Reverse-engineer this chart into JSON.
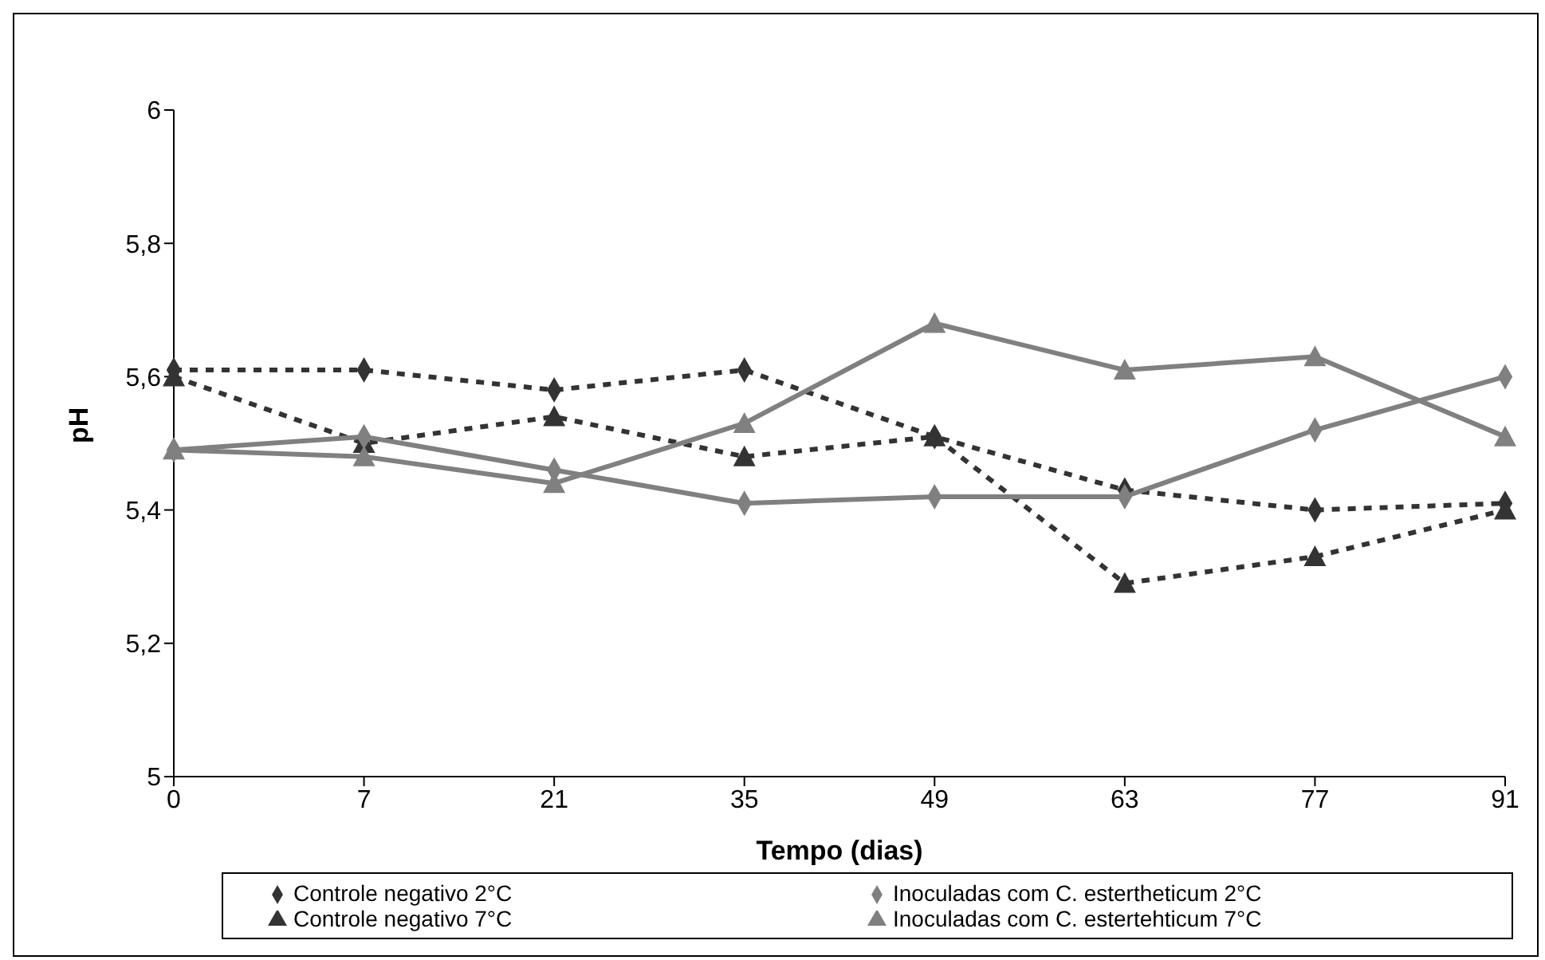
{
  "chart_data": {
    "type": "line",
    "xlabel": "Tempo (dias)",
    "ylabel": "pH",
    "categories": [
      "0",
      "7",
      "21",
      "35",
      "49",
      "63",
      "77",
      "91"
    ],
    "series": [
      {
        "name": "Controle negativo 2°C",
        "color": "#333333",
        "marker": "diamond",
        "line_style": "dashed",
        "values": [
          5.61,
          5.61,
          5.58,
          5.61,
          5.51,
          5.43,
          5.4,
          5.41
        ]
      },
      {
        "name": "Controle negativo 7°C",
        "color": "#333333",
        "marker": "triangle",
        "line_style": "dashed",
        "values": [
          5.6,
          5.5,
          5.54,
          5.48,
          5.51,
          5.29,
          5.33,
          5.4
        ]
      },
      {
        "name": "Inoculadas com C. estertheticum 2°C",
        "color": "#808080",
        "marker": "diamond",
        "line_style": "solid",
        "values": [
          5.49,
          5.51,
          5.46,
          5.41,
          5.42,
          5.42,
          5.52,
          5.6
        ]
      },
      {
        "name": "Inoculadas com C. estertehticum 7°C",
        "color": "#808080",
        "marker": "triangle",
        "line_style": "solid",
        "values": [
          5.49,
          5.48,
          5.44,
          5.53,
          5.68,
          5.61,
          5.63,
          5.51
        ]
      }
    ],
    "ylim": [
      5,
      6
    ],
    "yticks": [
      5,
      {
        "value": 5.2,
        "label": "5,2"
      },
      {
        "value": 5.4,
        "label": "5,4"
      },
      {
        "value": 5.6,
        "label": "5,6"
      },
      {
        "value": 5.8,
        "label": "5,8"
      },
      6
    ],
    "grid": false,
    "legend": "bottom"
  }
}
